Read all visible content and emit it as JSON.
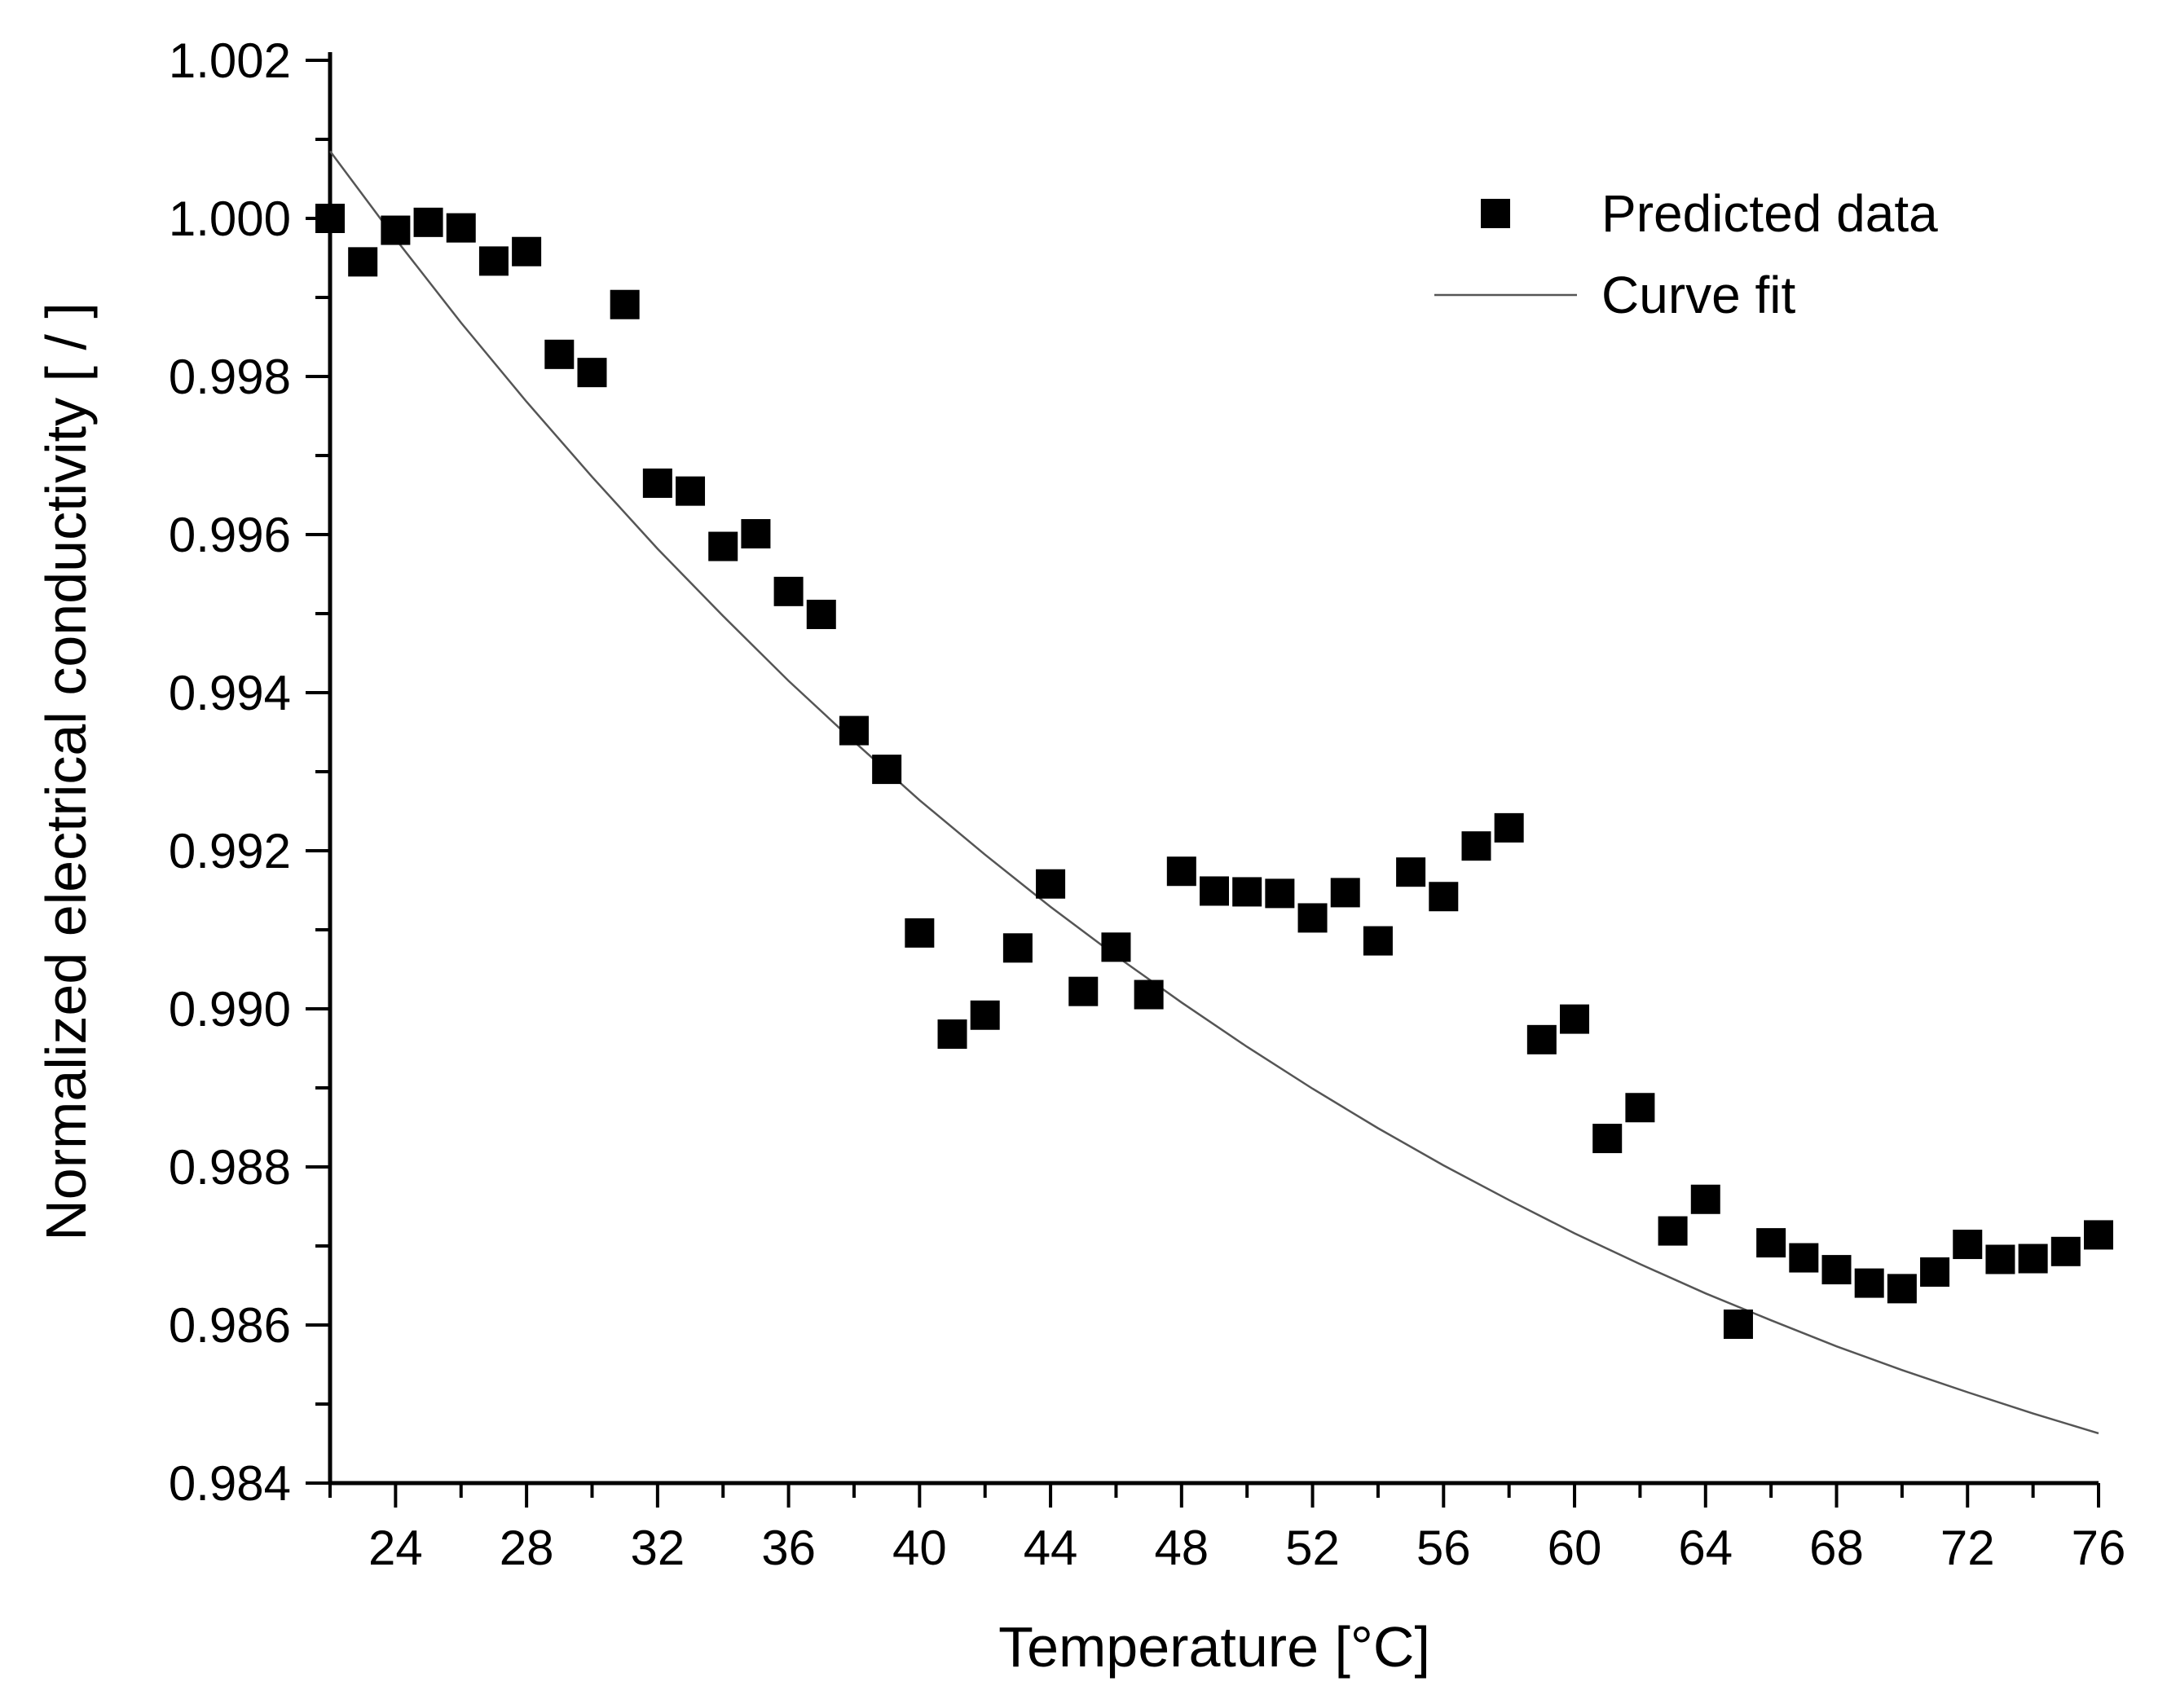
{
  "chart_data": {
    "type": "scatter",
    "title": "",
    "xlabel": "Temperature [°C]",
    "ylabel": "Normalized electrical conductivity [ / ]",
    "xlim": [
      22,
      76
    ],
    "ylim": [
      0.984,
      1.002
    ],
    "x_ticks": [
      24,
      28,
      32,
      36,
      40,
      44,
      48,
      52,
      56,
      60,
      64,
      68,
      72,
      76
    ],
    "x_tick_labels": [
      "24",
      "28",
      "32",
      "36",
      "40",
      "44",
      "48",
      "52",
      "56",
      "60",
      "64",
      "68",
      "72",
      "76"
    ],
    "y_ticks": [
      0.984,
      0.986,
      0.988,
      0.99,
      0.992,
      0.994,
      0.996,
      0.998,
      1.0,
      1.002
    ],
    "y_tick_labels": [
      "0.984",
      "0.986",
      "0.988",
      "0.990",
      "0.992",
      "0.994",
      "0.996",
      "0.998",
      "1.000",
      "1.002"
    ],
    "grid": false,
    "legend": {
      "position": "top-right",
      "entries": [
        {
          "label": "Predicted data",
          "marker": "square"
        },
        {
          "label": "Curve fit",
          "marker": "line"
        }
      ]
    },
    "series": [
      {
        "name": "Predicted data",
        "type": "scatter",
        "marker": "square",
        "color": "#000000",
        "points": [
          [
            22,
            1.0
          ],
          [
            23,
            0.99945
          ],
          [
            24,
            0.99985
          ],
          [
            25,
            0.99995
          ],
          [
            26,
            0.99988
          ],
          [
            27,
            0.99946
          ],
          [
            28,
            0.99958
          ],
          [
            29,
            0.99828
          ],
          [
            30,
            0.99805
          ],
          [
            31,
            0.99891
          ],
          [
            32,
            0.99665
          ],
          [
            33,
            0.99655
          ],
          [
            34,
            0.99585
          ],
          [
            35,
            0.99601
          ],
          [
            36,
            0.99528
          ],
          [
            37,
            0.99499
          ],
          [
            38,
            0.99352
          ],
          [
            39,
            0.99303
          ],
          [
            40,
            0.99096
          ],
          [
            41,
            0.98968
          ],
          [
            42,
            0.98992
          ],
          [
            43,
            0.99077
          ],
          [
            44,
            0.99158
          ],
          [
            45,
            0.99022
          ],
          [
            46,
            0.99078
          ],
          [
            47,
            0.99018
          ],
          [
            48,
            0.99174
          ],
          [
            49,
            0.99149
          ],
          [
            50,
            0.99148
          ],
          [
            51,
            0.99146
          ],
          [
            52,
            0.99115
          ],
          [
            53,
            0.99147
          ],
          [
            54,
            0.99086
          ],
          [
            55,
            0.99173
          ],
          [
            56,
            0.99142
          ],
          [
            57,
            0.99206
          ],
          [
            58,
            0.99229
          ],
          [
            59,
            0.98961
          ],
          [
            60,
            0.98987
          ],
          [
            61,
            0.98836
          ],
          [
            62,
            0.98875
          ],
          [
            63,
            0.98719
          ],
          [
            64,
            0.98759
          ],
          [
            65,
            0.98601
          ],
          [
            66,
            0.98704
          ],
          [
            67,
            0.98685
          ],
          [
            68,
            0.9867
          ],
          [
            69,
            0.98653
          ],
          [
            70,
            0.98646
          ],
          [
            71,
            0.98667
          ],
          [
            72,
            0.98702
          ],
          [
            73,
            0.98683
          ],
          [
            74,
            0.98684
          ],
          [
            75,
            0.98693
          ],
          [
            76,
            0.98714
          ]
        ]
      },
      {
        "name": "Curve fit",
        "type": "line",
        "color": "#555555",
        "points": [
          [
            22,
            1.00085
          ],
          [
            24,
            0.99974
          ],
          [
            26,
            0.99868
          ],
          [
            28,
            0.99768
          ],
          [
            30,
            0.99673
          ],
          [
            32,
            0.99582
          ],
          [
            34,
            0.99497
          ],
          [
            36,
            0.99415
          ],
          [
            38,
            0.99338
          ],
          [
            40,
            0.99264
          ],
          [
            42,
            0.99195
          ],
          [
            44,
            0.99129
          ],
          [
            46,
            0.99067
          ],
          [
            48,
            0.99008
          ],
          [
            50,
            0.98952
          ],
          [
            52,
            0.98899
          ],
          [
            54,
            0.98849
          ],
          [
            56,
            0.98802
          ],
          [
            58,
            0.98758
          ],
          [
            60,
            0.98716
          ],
          [
            62,
            0.98677
          ],
          [
            64,
            0.9864
          ],
          [
            66,
            0.98606
          ],
          [
            68,
            0.98573
          ],
          [
            70,
            0.98543
          ],
          [
            72,
            0.98515
          ],
          [
            74,
            0.98488
          ],
          [
            76,
            0.98463
          ]
        ]
      }
    ]
  }
}
